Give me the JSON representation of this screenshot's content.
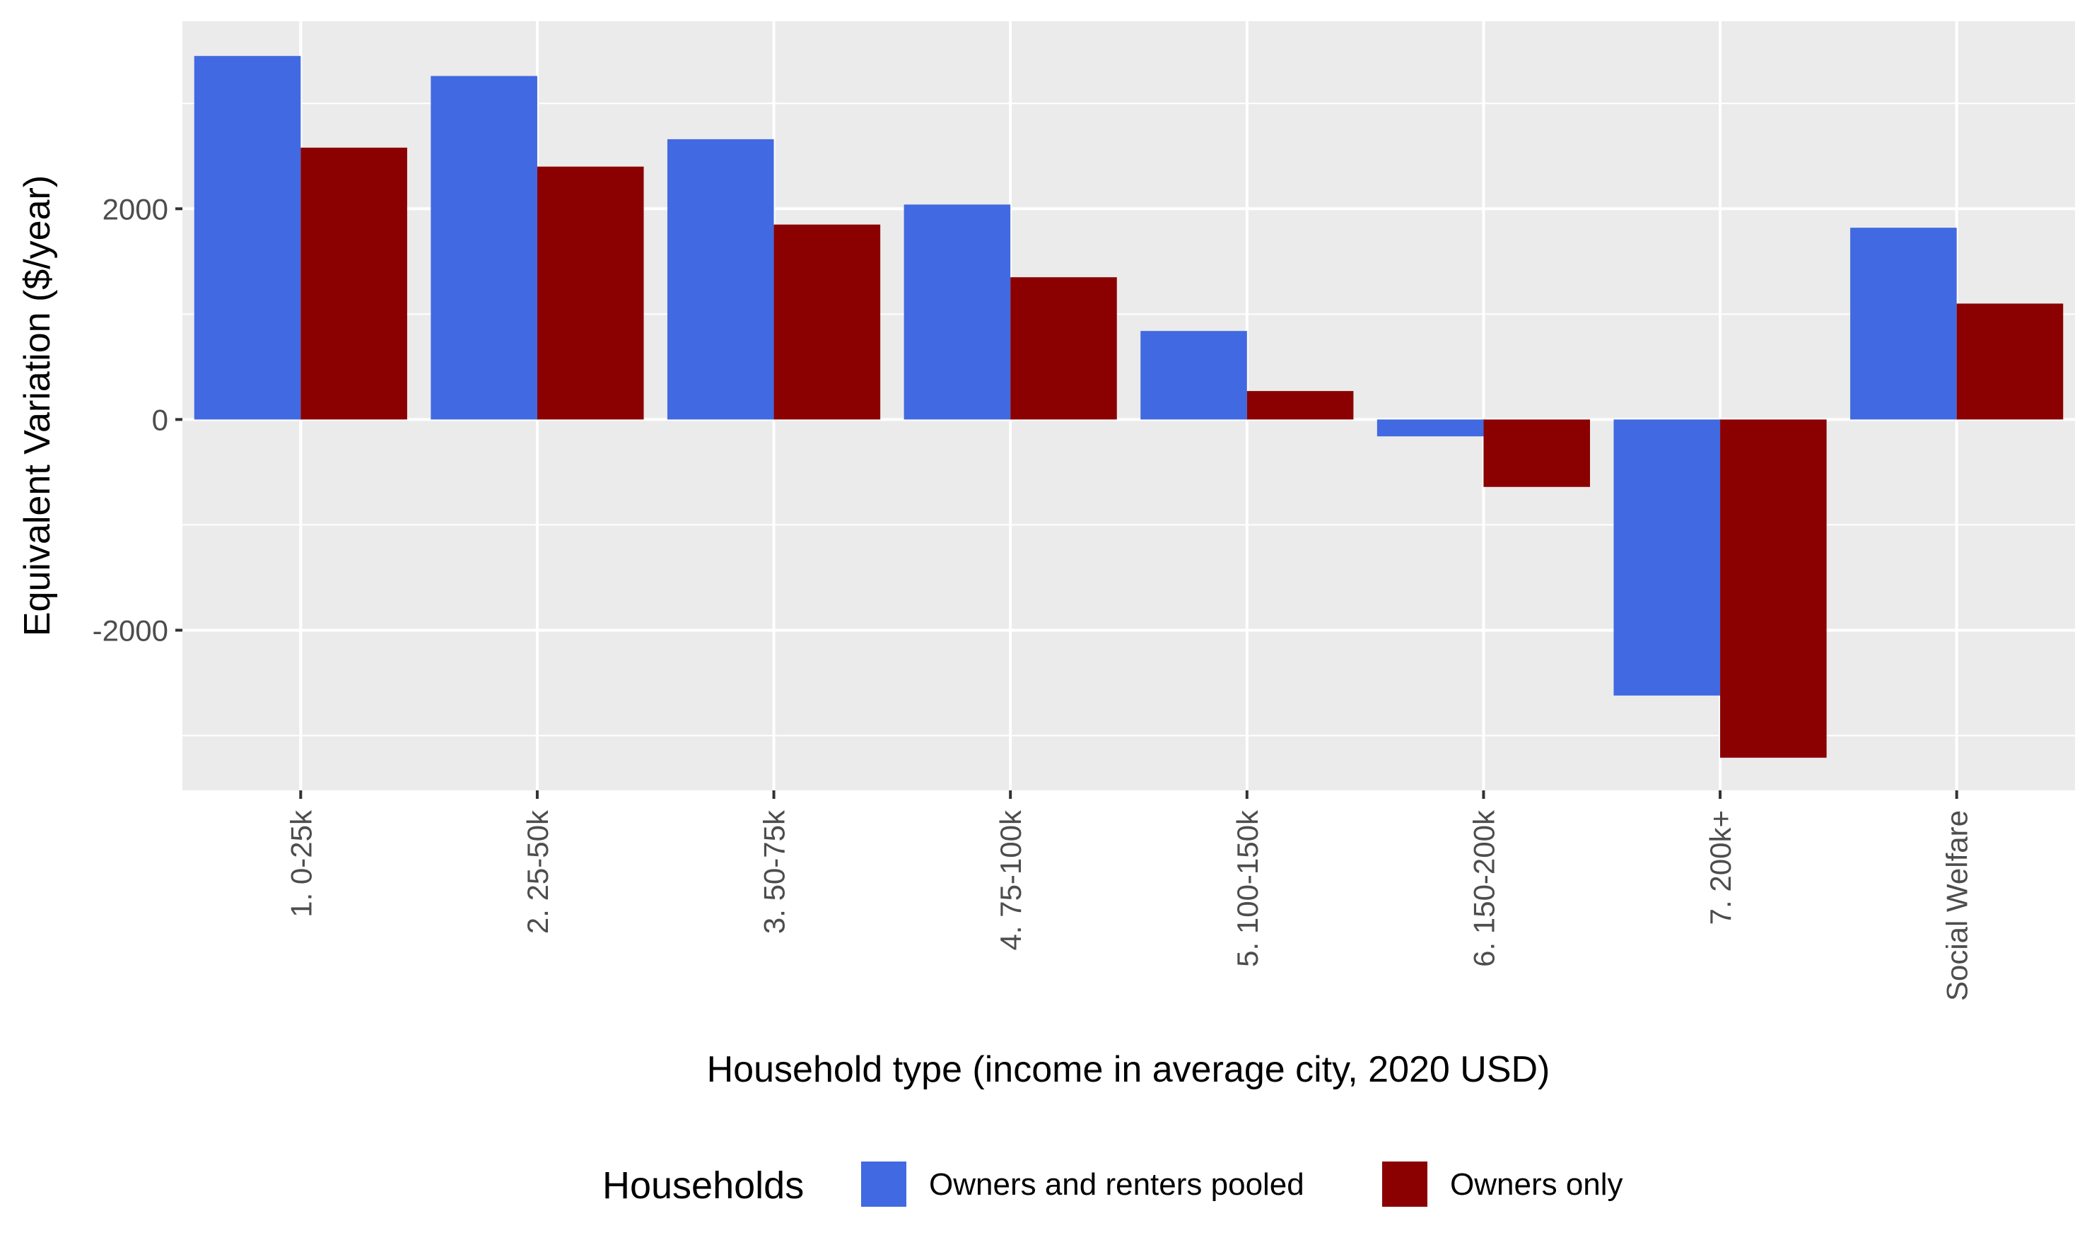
{
  "chart_data": {
    "type": "bar",
    "categories": [
      "1. 0-25k",
      "2. 25-50k",
      "3. 50-75k",
      "4. 75-100k",
      "5. 100-150k",
      "6. 150-200k",
      "7. 200k+",
      "Social Welfare"
    ],
    "series": [
      {
        "name": "Owners and renters pooled",
        "color": "#4169E1",
        "values": [
          3450,
          3260,
          2660,
          2040,
          840,
          -160,
          -2620,
          1820
        ]
      },
      {
        "name": "Owners only",
        "color": "#8B0000",
        "values": [
          2580,
          2400,
          1850,
          1350,
          270,
          -640,
          -3210,
          1100
        ]
      }
    ],
    "xlabel": "Household type (income in average city, 2020 USD)",
    "ylabel": "Equivalent Variation ($/year)",
    "ylim": [
      -3520,
      3780
    ],
    "yticks": [
      -2000,
      0,
      2000
    ],
    "ytick_labels": [
      "-2000",
      "0",
      "2000"
    ],
    "legend": {
      "title": "Households",
      "position": "bottom"
    },
    "grid": true,
    "panel_background": "#EBEBEB",
    "grid_color": "#FFFFFF"
  }
}
